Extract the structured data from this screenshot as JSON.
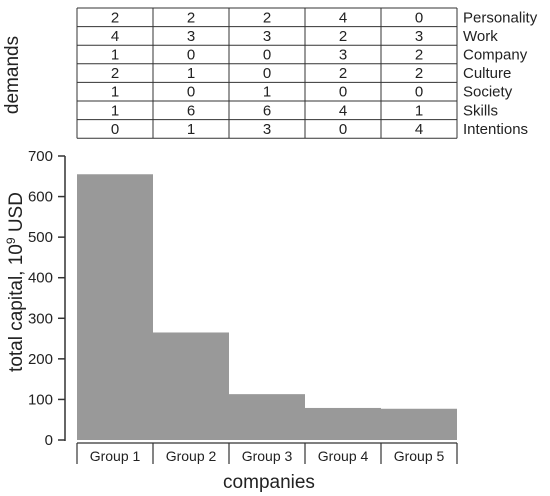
{
  "chart_data": {
    "type": "bar",
    "categories": [
      "Group 1",
      "Group 2",
      "Group 3",
      "Group 4",
      "Group 5"
    ],
    "values": [
      655,
      265,
      113,
      79,
      77
    ],
    "xlabel": "companies",
    "ylabel": "total capital, 10",
    "ylabel_exponent": "9",
    "ylabel_unit": " USD",
    "ylim": [
      0,
      700
    ],
    "yticks": [
      0,
      100,
      200,
      300,
      400,
      500,
      600,
      700
    ],
    "bar_color": "#999999",
    "grid": false,
    "table": {
      "side_label": "demands",
      "rows": [
        {
          "label": "Personality",
          "values": [
            2,
            2,
            2,
            4,
            0
          ]
        },
        {
          "label": "Work",
          "values": [
            4,
            3,
            3,
            2,
            3
          ]
        },
        {
          "label": "Company",
          "values": [
            1,
            0,
            0,
            3,
            2
          ]
        },
        {
          "label": "Culture",
          "values": [
            2,
            1,
            0,
            2,
            2
          ]
        },
        {
          "label": "Society",
          "values": [
            1,
            0,
            1,
            0,
            0
          ]
        },
        {
          "label": "Skills",
          "values": [
            1,
            6,
            6,
            4,
            1
          ]
        },
        {
          "label": "Intentions",
          "values": [
            0,
            1,
            3,
            0,
            4
          ]
        }
      ]
    }
  }
}
